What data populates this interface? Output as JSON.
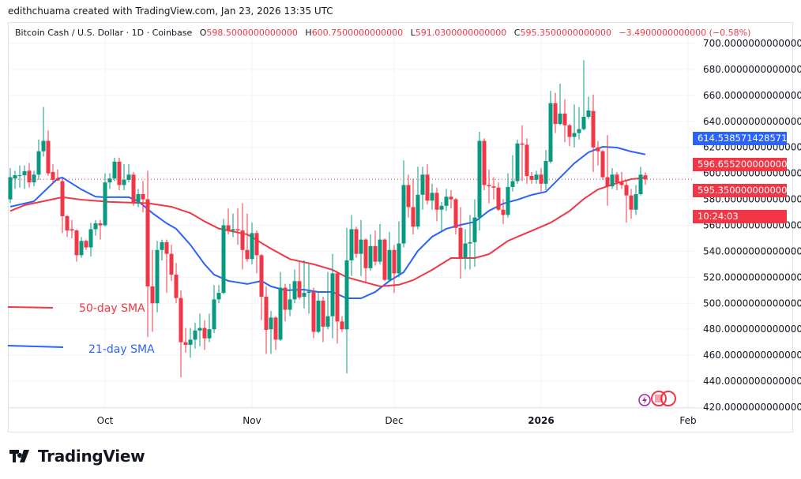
{
  "credit": "edithchuama created with TradingView.com, Jan 23, 2026 13:35 UTC",
  "legend": {
    "symbol": "Bitcoin Cash / U.S. Dollar · 1D · Coinbase",
    "o_key": "O",
    "o": "598.5000000000000",
    "h_key": "H",
    "h": "600.7500000000000",
    "l_key": "L",
    "l": "591.0300000000000",
    "c_key": "C",
    "c": "595.3500000000000",
    "change": "−3.4900000000000 (−0.58%)"
  },
  "badges": {
    "sma21": "614.5385714285715",
    "sma50": "596.6552000000000",
    "last": "595.3500000000000",
    "countdown": "10:24:03"
  },
  "annotations": {
    "sma50": "50-day SMA",
    "sma21": "21-day SMA"
  },
  "footer": {
    "logo": "TradingView"
  },
  "colors": {
    "up": "#089981",
    "down": "#f23645",
    "sma21": "#2962ff",
    "sma50": "#f23645"
  },
  "chart_data": {
    "type": "candlestick",
    "title": "Bitcoin Cash / U.S. Dollar · 1D · Coinbase",
    "ylim": [
      420,
      700
    ],
    "grid": true,
    "yticks": [
      "700.0000000000000",
      "680.0000000000000",
      "660.0000000000000",
      "640.0000000000000",
      "620.0000000000000",
      "600.0000000000000",
      "580.0000000000000",
      "560.0000000000000",
      "540.0000000000000",
      "520.0000000000000",
      "500.0000000000000",
      "480.0000000000000",
      "460.0000000000000",
      "440.0000000000000",
      "420.0000000000000"
    ],
    "xticks": [
      {
        "label": "Oct",
        "date": "2025-10-01",
        "bold": false
      },
      {
        "label": "Nov",
        "date": "2025-11-01",
        "bold": false
      },
      {
        "label": "Dec",
        "date": "2025-12-01",
        "bold": false
      },
      {
        "label": "2026",
        "date": "2026-01-01",
        "bold": true
      },
      {
        "label": "Feb",
        "date": "2026-02-01",
        "bold": false
      }
    ],
    "candles_fields": [
      "date",
      "open",
      "high",
      "low",
      "close"
    ],
    "candles": [
      [
        "2025-09-11",
        580,
        604,
        577,
        597
      ],
      [
        "2025-09-12",
        596,
        602,
        588,
        598.5
      ],
      [
        "2025-09-13",
        598,
        606,
        589,
        598.5
      ],
      [
        "2025-09-14",
        598.5,
        606,
        588,
        601.6
      ],
      [
        "2025-09-15",
        602,
        608,
        589,
        593
      ],
      [
        "2025-09-16",
        593,
        602,
        590,
        599
      ],
      [
        "2025-09-17",
        599,
        626,
        595,
        617
      ],
      [
        "2025-09-18",
        617,
        651,
        613,
        625
      ],
      [
        "2025-09-19",
        625,
        633,
        598,
        600
      ],
      [
        "2025-09-20",
        601,
        607,
        592,
        595
      ],
      [
        "2025-09-21",
        596,
        603,
        594,
        594.5
      ],
      [
        "2025-09-22",
        594,
        596,
        554,
        567
      ],
      [
        "2025-09-23",
        567,
        568,
        551,
        556
      ],
      [
        "2025-09-24",
        557,
        564,
        550,
        556
      ],
      [
        "2025-09-25",
        556,
        557,
        532,
        537
      ],
      [
        "2025-09-26",
        537,
        551,
        535,
        548
      ],
      [
        "2025-09-27",
        548,
        549,
        541,
        543
      ],
      [
        "2025-09-28",
        543,
        562,
        536,
        557
      ],
      [
        "2025-09-29",
        557,
        564,
        552,
        561.5
      ],
      [
        "2025-09-30",
        561.5,
        564,
        549,
        560
      ],
      [
        "2025-10-01",
        560,
        600,
        559,
        593
      ],
      [
        "2025-10-02",
        593,
        600,
        588,
        596
      ],
      [
        "2025-10-03",
        596,
        612,
        594,
        609
      ],
      [
        "2025-10-04",
        609,
        612,
        587,
        591
      ],
      [
        "2025-10-05",
        591,
        607,
        587,
        595
      ],
      [
        "2025-10-06",
        595,
        607,
        593,
        599
      ],
      [
        "2025-10-07",
        599,
        601,
        575,
        577
      ],
      [
        "2025-10-08",
        577,
        588,
        574,
        584
      ],
      [
        "2025-10-09",
        584,
        594,
        570,
        580
      ],
      [
        "2025-10-10",
        580,
        602,
        474,
        513
      ],
      [
        "2025-10-11",
        513,
        541,
        478,
        500
      ],
      [
        "2025-10-12",
        500,
        548,
        493,
        541
      ],
      [
        "2025-10-13",
        541,
        549,
        533,
        547
      ],
      [
        "2025-10-14",
        547,
        549,
        508,
        538
      ],
      [
        "2025-10-15",
        538,
        545,
        517,
        522
      ],
      [
        "2025-10-16",
        522,
        531,
        500,
        504
      ],
      [
        "2025-10-17",
        504,
        510,
        443,
        470
      ],
      [
        "2025-10-18",
        470,
        481,
        462,
        468
      ],
      [
        "2025-10-19",
        468,
        481,
        458,
        472
      ],
      [
        "2025-10-20",
        472,
        485,
        465,
        479
      ],
      [
        "2025-10-21",
        479,
        492,
        467,
        481
      ],
      [
        "2025-10-22",
        481,
        487,
        464,
        473
      ],
      [
        "2025-10-23",
        473,
        492,
        470,
        480
      ],
      [
        "2025-10-24",
        480,
        514,
        477,
        503
      ],
      [
        "2025-10-25",
        503,
        514,
        500,
        508
      ],
      [
        "2025-10-26",
        508,
        565,
        507,
        560
      ],
      [
        "2025-10-27",
        560,
        573,
        553,
        556
      ],
      [
        "2025-10-28",
        556,
        569,
        551,
        557
      ],
      [
        "2025-10-29",
        557,
        573,
        545,
        556
      ],
      [
        "2025-10-30",
        556,
        577,
        526,
        541
      ],
      [
        "2025-10-31",
        541,
        569,
        532,
        534
      ],
      [
        "2025-11-01",
        534,
        562,
        530,
        554
      ],
      [
        "2025-11-02",
        554,
        556,
        523,
        537
      ],
      [
        "2025-11-03",
        537,
        538,
        487,
        505
      ],
      [
        "2025-11-04",
        505,
        513,
        461,
        479.5
      ],
      [
        "2025-11-05",
        480,
        494,
        461,
        489
      ],
      [
        "2025-11-06",
        489,
        490,
        464,
        472
      ],
      [
        "2025-11-07",
        472,
        524,
        471,
        512
      ],
      [
        "2025-11-08",
        512,
        515,
        486,
        495
      ],
      [
        "2025-11-09",
        495,
        515,
        490,
        503
      ],
      [
        "2025-11-10",
        503,
        526,
        500,
        517
      ],
      [
        "2025-11-11",
        517,
        532,
        503,
        504.5
      ],
      [
        "2025-11-12",
        505,
        533,
        496,
        508
      ],
      [
        "2025-11-13",
        508,
        530,
        492,
        509
      ],
      [
        "2025-11-14",
        509,
        512,
        473,
        478
      ],
      [
        "2025-11-15",
        478,
        508,
        477,
        502
      ],
      [
        "2025-11-16",
        502,
        505,
        470,
        482
      ],
      [
        "2025-11-17",
        482,
        524,
        480,
        490
      ],
      [
        "2025-11-18",
        490,
        538,
        473,
        523
      ],
      [
        "2025-11-19",
        523,
        524,
        469,
        486
      ],
      [
        "2025-11-20",
        486,
        490,
        478,
        480
      ],
      [
        "2025-11-21",
        480,
        558,
        446,
        533
      ],
      [
        "2025-11-22",
        533,
        568,
        521,
        557
      ],
      [
        "2025-11-23",
        557,
        559,
        535,
        538
      ],
      [
        "2025-11-24",
        538,
        564,
        521,
        549
      ],
      [
        "2025-11-25",
        549,
        550,
        516,
        527
      ],
      [
        "2025-11-26",
        527,
        553,
        525,
        544
      ],
      [
        "2025-11-27",
        544,
        556,
        529,
        532
      ],
      [
        "2025-11-28",
        532,
        561,
        530,
        549
      ],
      [
        "2025-11-29",
        549,
        550,
        517,
        518
      ],
      [
        "2025-11-30",
        518,
        555,
        517,
        541
      ],
      [
        "2025-12-01",
        541,
        545,
        508,
        523
      ],
      [
        "2025-12-02",
        523,
        563,
        520,
        546
      ],
      [
        "2025-12-03",
        546,
        610,
        543,
        591
      ],
      [
        "2025-12-04",
        591,
        599,
        566,
        574
      ],
      [
        "2025-12-05",
        574,
        596,
        553,
        559
      ],
      [
        "2025-12-06",
        559,
        605,
        557,
        583.5
      ],
      [
        "2025-12-07",
        583.5,
        605,
        572,
        599
      ],
      [
        "2025-12-08",
        599,
        607,
        576,
        579
      ],
      [
        "2025-12-09",
        579,
        592,
        572,
        585
      ],
      [
        "2025-12-10",
        585,
        589,
        563,
        572
      ],
      [
        "2025-12-11",
        572,
        578,
        555,
        575
      ],
      [
        "2025-12-12",
        575,
        588,
        571,
        582
      ],
      [
        "2025-12-13",
        582,
        587,
        573,
        580
      ],
      [
        "2025-12-14",
        580,
        581,
        553,
        558
      ],
      [
        "2025-12-15",
        558,
        574,
        519,
        535
      ],
      [
        "2025-12-16",
        535,
        557,
        526,
        546
      ],
      [
        "2025-12-17",
        546,
        568,
        526,
        547
      ],
      [
        "2025-12-18",
        547,
        580,
        528,
        566
      ],
      [
        "2025-12-19",
        566,
        632,
        556,
        625
      ],
      [
        "2025-12-20",
        625,
        627,
        587,
        591
      ],
      [
        "2025-12-21",
        591,
        603,
        577,
        590
      ],
      [
        "2025-12-22",
        590,
        597,
        580,
        589
      ],
      [
        "2025-12-23",
        589,
        593,
        571,
        572
      ],
      [
        "2025-12-24",
        572,
        580,
        561,
        568
      ],
      [
        "2025-12-25",
        568,
        600,
        566,
        589.5
      ],
      [
        "2025-12-26",
        589.5,
        614,
        586,
        594
      ],
      [
        "2025-12-27",
        594,
        626,
        592,
        623
      ],
      [
        "2025-12-28",
        623,
        637,
        594,
        622
      ],
      [
        "2025-12-29",
        622,
        627,
        592,
        598
      ],
      [
        "2025-12-30",
        598,
        601,
        592,
        595
      ],
      [
        "2025-12-31",
        595,
        602,
        592,
        599
      ],
      [
        "2026-01-01",
        599,
        604,
        586,
        592
      ],
      [
        "2026-01-02",
        592,
        618,
        587,
        609.5
      ],
      [
        "2026-01-03",
        609,
        663.5,
        607.7,
        654
      ],
      [
        "2026-01-04",
        654,
        662,
        631,
        638
      ],
      [
        "2026-01-05",
        638,
        669,
        637,
        646
      ],
      [
        "2026-01-06",
        646,
        657,
        624,
        637
      ],
      [
        "2026-01-07",
        637,
        638,
        621,
        628
      ],
      [
        "2026-01-08",
        628,
        653,
        620,
        631
      ],
      [
        "2026-01-09",
        631,
        651,
        626,
        634
      ],
      [
        "2026-01-10",
        634,
        687,
        633,
        643.5
      ],
      [
        "2026-01-11",
        643.5,
        659,
        642,
        648.4
      ],
      [
        "2026-01-12",
        648,
        660.5,
        601,
        620
      ],
      [
        "2026-01-13",
        620,
        625,
        606,
        617
      ],
      [
        "2026-01-14",
        617,
        618,
        595,
        597
      ],
      [
        "2026-01-15",
        597,
        629.5,
        575,
        590
      ],
      [
        "2026-01-16",
        590,
        604,
        588,
        599
      ],
      [
        "2026-01-17",
        599,
        601,
        587,
        593
      ],
      [
        "2026-01-18",
        593,
        601,
        588,
        591
      ],
      [
        "2026-01-19",
        591,
        594,
        562,
        583
      ],
      [
        "2026-01-20",
        583,
        588,
        565,
        572
      ],
      [
        "2026-01-21",
        572,
        591,
        568,
        584
      ],
      [
        "2026-01-22",
        584,
        605,
        583,
        599
      ],
      [
        "2026-01-23",
        598.5,
        600.75,
        591.03,
        595.35
      ]
    ],
    "last_price": 595.35,
    "series": [
      {
        "name": "21-day SMA",
        "color": "#2962ff",
        "points": [
          [
            "2025-09-11",
            574.3
          ],
          [
            "2025-09-16",
            578.5
          ],
          [
            "2025-09-21",
            596
          ],
          [
            "2025-09-22",
            596.7
          ],
          [
            "2025-09-26",
            587.6
          ],
          [
            "2025-09-29",
            582
          ],
          [
            "2025-10-01",
            581.6
          ],
          [
            "2025-10-06",
            581.6
          ],
          [
            "2025-10-08",
            578.5
          ],
          [
            "2025-10-11",
            569.4
          ],
          [
            "2025-10-14",
            561.5
          ],
          [
            "2025-10-16",
            557.3
          ],
          [
            "2025-10-19",
            545
          ],
          [
            "2025-10-22",
            530
          ],
          [
            "2025-10-24",
            522
          ],
          [
            "2025-10-27",
            517.2
          ],
          [
            "2025-10-31",
            514.8
          ],
          [
            "2025-11-03",
            517.2
          ],
          [
            "2025-11-05",
            513
          ],
          [
            "2025-11-08",
            510
          ],
          [
            "2025-11-12",
            510.5
          ],
          [
            "2025-11-15",
            508.7
          ],
          [
            "2025-11-18",
            508.7
          ],
          [
            "2025-11-21",
            503.8
          ],
          [
            "2025-11-24",
            503.8
          ],
          [
            "2025-11-27",
            508.7
          ],
          [
            "2025-11-30",
            517.2
          ],
          [
            "2025-12-03",
            523.9
          ],
          [
            "2025-12-06",
            540.3
          ],
          [
            "2025-12-09",
            551.2
          ],
          [
            "2025-12-12",
            557.3
          ],
          [
            "2025-12-15",
            560.3
          ],
          [
            "2025-12-18",
            562.7
          ],
          [
            "2025-12-21",
            571.2
          ],
          [
            "2025-12-24",
            576.7
          ],
          [
            "2025-12-27",
            579.7
          ],
          [
            "2025-12-30",
            583.4
          ],
          [
            "2026-01-02",
            585.8
          ],
          [
            "2026-01-05",
            596.7
          ],
          [
            "2026-01-08",
            607.7
          ],
          [
            "2026-01-11",
            616.2
          ],
          [
            "2026-01-14",
            620.4
          ],
          [
            "2026-01-17",
            619.8
          ],
          [
            "2026-01-20",
            616.8
          ],
          [
            "2026-01-23",
            614.54
          ]
        ]
      },
      {
        "name": "50-day SMA",
        "color": "#f23645",
        "points": [
          [
            "2025-09-11",
            571
          ],
          [
            "2025-09-14",
            575.5
          ],
          [
            "2025-09-18",
            578.5
          ],
          [
            "2025-09-22",
            581.6
          ],
          [
            "2025-09-26",
            579.7
          ],
          [
            "2025-10-02",
            578
          ],
          [
            "2025-10-10",
            577
          ],
          [
            "2025-10-15",
            574.3
          ],
          [
            "2025-10-19",
            569.4
          ],
          [
            "2025-10-22",
            563
          ],
          [
            "2025-10-25",
            557.5
          ],
          [
            "2025-10-31",
            553
          ],
          [
            "2025-11-05",
            542
          ],
          [
            "2025-11-09",
            534
          ],
          [
            "2025-11-14",
            530
          ],
          [
            "2025-11-18",
            525.7
          ],
          [
            "2025-11-21",
            520
          ],
          [
            "2025-11-25",
            516
          ],
          [
            "2025-11-28",
            513
          ],
          [
            "2025-12-02",
            514.2
          ],
          [
            "2025-12-05",
            517.8
          ],
          [
            "2025-12-09",
            525.7
          ],
          [
            "2025-12-13",
            534.8
          ],
          [
            "2025-12-18",
            534.8
          ],
          [
            "2025-12-21",
            537.8
          ],
          [
            "2025-12-25",
            548
          ],
          [
            "2025-12-31",
            557.3
          ],
          [
            "2026-01-03",
            562
          ],
          [
            "2026-01-07",
            571
          ],
          [
            "2026-01-10",
            580.3
          ],
          [
            "2026-01-13",
            587.6
          ],
          [
            "2026-01-17",
            592.5
          ],
          [
            "2026-01-20",
            595.5
          ],
          [
            "2026-01-23",
            596.66
          ]
        ]
      }
    ]
  }
}
